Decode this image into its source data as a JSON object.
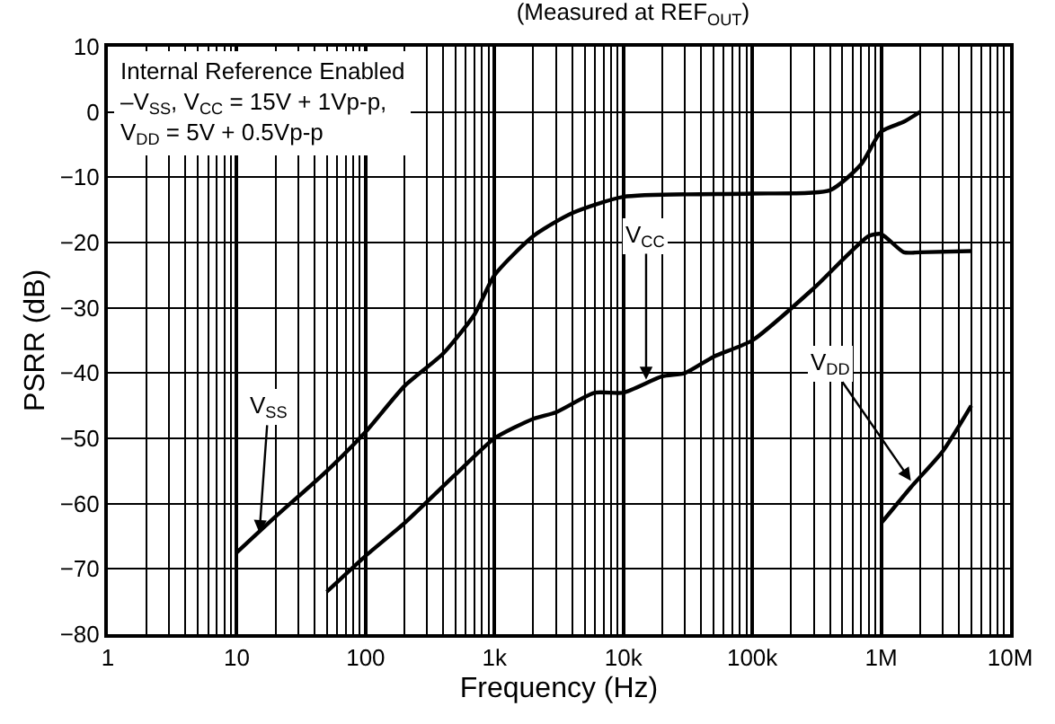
{
  "chart_data": {
    "type": "line",
    "title": "(Measured at REF$_{OUT}$)",
    "xlabel": "Frequency (Hz)",
    "ylabel": "PSRR (dB)",
    "log": "x",
    "grid": true,
    "marker": "none",
    "line_style": "solid",
    "xlim": [
      1,
      10000000
    ],
    "xticks": [
      1,
      10,
      100,
      {
        "value": 1000,
        "label": "1k"
      },
      {
        "value": 10000,
        "label": "10k"
      },
      {
        "value": 100000,
        "label": "100k"
      },
      {
        "value": 1000000,
        "label": "1M"
      },
      {
        "value": 10000000,
        "label": "10M"
      }
    ],
    "ylim": [
      -80,
      10
    ],
    "yticks": [
      -80,
      -70,
      -60,
      -50,
      -40,
      -30,
      -20,
      -10,
      0,
      10
    ],
    "series": [
      {
        "color": "#000000",
        "x": [
          10,
          20,
          50,
          100,
          200,
          400,
          700,
          1000,
          2000,
          4000,
          10000,
          100000,
          400000,
          700000,
          1000000,
          1500000,
          2000000
        ],
        "values": [
          -67.5,
          -62,
          -55,
          -49,
          -42,
          -37,
          -31,
          -25,
          -19,
          -15.5,
          -13,
          -12.5,
          -12,
          -8,
          -3,
          -1.5,
          0
        ]
      },
      {
        "color": "#000000",
        "x": [
          50,
          100,
          200,
          500,
          1000,
          2000,
          3000,
          6000,
          10000,
          20000,
          30000,
          50000,
          100000,
          300000,
          800000,
          1000000,
          1500000,
          2000000,
          5000000
        ],
        "values": [
          -73.5,
          -68,
          -63,
          -55.5,
          -50,
          -47,
          -46,
          -43,
          -43,
          -40.5,
          -40,
          -37.5,
          -35,
          -27,
          -19,
          -18.7,
          -21.5,
          -21.5,
          -21.3
        ]
      },
      {
        "color": "#000000",
        "x": [
          1000000,
          1700000,
          3000000,
          5000000
        ],
        "values": [
          -63,
          -57.5,
          -52,
          -45
        ]
      }
    ],
    "annotations": [
      "Internal Reference Enabled",
      "–V$_{SS}$, V$_{CC}$ = 15V + 1Vp-p,",
      "V$_{DD}$ = 5V + 0.5Vp-p",
      {
        "text": "V$_{SS}$",
        "x": 15,
        "y": -64.5
      },
      {
        "text": "V$_{CC}$",
        "x": 15000,
        "y": -41
      },
      {
        "text": "V$_{DD}$",
        "x": 1700000,
        "y": -56.5
      }
    ]
  }
}
